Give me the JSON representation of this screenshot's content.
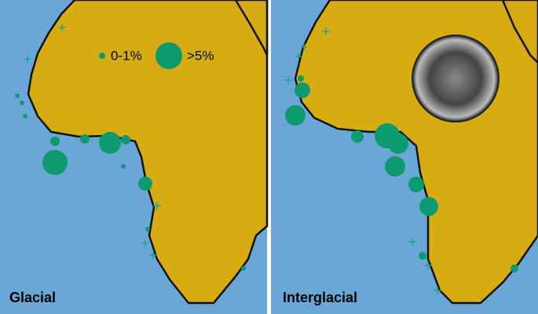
{
  "legend": {
    "small": "0-1%",
    "large": ">5%"
  },
  "panels": [
    {
      "label": "Glacial"
    },
    {
      "label": "Interglacial"
    }
  ]
}
